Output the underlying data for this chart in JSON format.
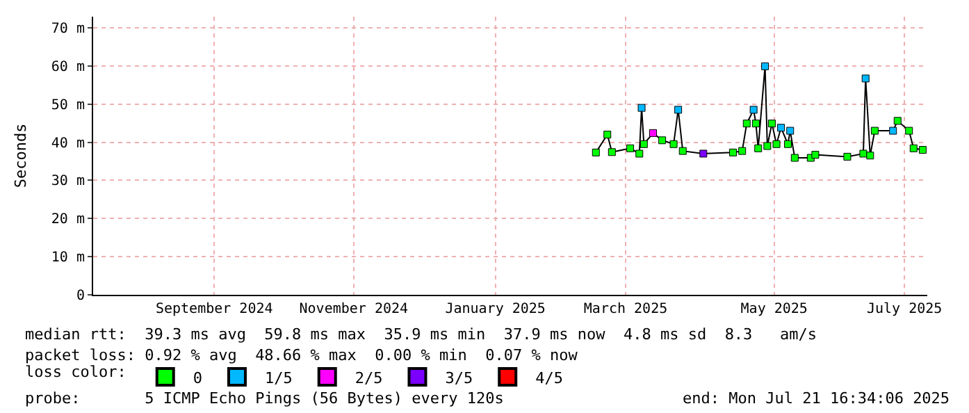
{
  "chart_data": {
    "type": "line",
    "ylabel": "Seconds",
    "x": [
      "2025-02-26",
      "2025-03-03",
      "2025-03-05",
      "2025-03-13",
      "2025-03-17",
      "2025-03-18",
      "2025-03-19",
      "2025-03-23",
      "2025-03-27",
      "2025-04-01",
      "2025-04-03",
      "2025-04-05",
      "2025-04-14",
      "2025-04-27",
      "2025-05-01",
      "2025-05-03",
      "2025-05-06",
      "2025-05-07",
      "2025-05-08",
      "2025-05-11",
      "2025-05-12",
      "2025-05-14",
      "2025-05-16",
      "2025-05-18",
      "2025-05-21",
      "2025-05-22",
      "2025-05-24",
      "2025-05-31",
      "2025-06-02",
      "2025-06-16",
      "2025-06-23",
      "2025-06-24",
      "2025-06-26",
      "2025-06-28",
      "2025-07-06",
      "2025-07-08",
      "2025-07-13",
      "2025-07-15",
      "2025-07-19"
    ],
    "series": [
      {
        "color": "#000000",
        "values": [
          37.3,
          42,
          37.4,
          38.4,
          37,
          49,
          39.5,
          42.4,
          40.5,
          39.5,
          48.5,
          37.7,
          37,
          37.3,
          37.7,
          44.9,
          48.5,
          44.9,
          38.4,
          59.9,
          39,
          44.9,
          39.5,
          43.8,
          39.5,
          43,
          35.9,
          35.9,
          36.7,
          36.2,
          37,
          56.7,
          36.5,
          43,
          43,
          45.6,
          43,
          38.4,
          38
        ]
      },
      {
        "name": "0",
        "color": "#00ff00",
        "type": "scatter",
        "marker": "square",
        "values": [
          37.3,
          42,
          37.4,
          38.4,
          37,
          null,
          39.5,
          null,
          40.5,
          39.5,
          null,
          37.7,
          null,
          37.3,
          37.7,
          44.9,
          null,
          44.9,
          38.4,
          null,
          39,
          44.9,
          39.5,
          null,
          39.5,
          null,
          35.9,
          35.9,
          36.7,
          36.2,
          37,
          null,
          36.5,
          43,
          null,
          45.6,
          43,
          38.4,
          38
        ]
      },
      {
        "name": "1/5",
        "color": "#00b8ff",
        "type": "scatter",
        "marker": "square",
        "values": [
          null,
          null,
          null,
          null,
          null,
          49,
          null,
          null,
          null,
          null,
          48.5,
          null,
          null,
          null,
          null,
          null,
          48.5,
          null,
          null,
          59.9,
          null,
          null,
          null,
          43.8,
          null,
          43,
          null,
          null,
          null,
          null,
          null,
          56.7,
          null,
          null,
          43,
          null,
          null,
          null,
          null
        ]
      },
      {
        "name": "2/5",
        "color": "#ff00ff",
        "type": "scatter",
        "marker": "square",
        "values": [
          null,
          null,
          null,
          null,
          null,
          null,
          null,
          42.4,
          null,
          null,
          null,
          null,
          null,
          null,
          null,
          null,
          null,
          null,
          null,
          null,
          null,
          null,
          null,
          null,
          null,
          null,
          null,
          null,
          null,
          null,
          null,
          null,
          null,
          null,
          null,
          null,
          null,
          null,
          null
        ]
      },
      {
        "name": "3/5",
        "color": "#7b00ff",
        "type": "scatter",
        "marker": "square",
        "values": [
          null,
          null,
          null,
          null,
          null,
          null,
          null,
          null,
          null,
          null,
          null,
          null,
          37,
          null,
          null,
          null,
          null,
          null,
          null,
          null,
          null,
          null,
          null,
          null,
          null,
          null,
          null,
          null,
          null,
          null,
          null,
          null,
          null,
          null,
          null,
          null,
          null,
          null,
          null
        ]
      },
      {
        "name": "4/5",
        "color": "#ff0000",
        "type": "scatter",
        "marker": "square",
        "values": [
          null,
          null,
          null,
          null,
          null,
          null,
          null,
          null,
          null,
          null,
          null,
          null,
          null,
          null,
          null,
          null,
          null,
          null,
          null,
          null,
          null,
          null,
          null,
          null,
          null,
          null,
          null,
          null,
          null,
          null,
          null,
          null,
          null,
          null,
          null,
          null,
          null,
          null,
          null
        ]
      }
    ],
    "legend_title": "loss color:",
    "legend": "bottom left",
    "xlim": [
      "2024-07-21",
      "2025-07-21"
    ],
    "xticks": [
      {
        "value": "2024-09-12",
        "label": "September 2024"
      },
      {
        "value": "2024-11-12",
        "label": "November 2024"
      },
      {
        "value": "2025-01-13",
        "label": "January 2025"
      },
      {
        "value": "2025-03-11",
        "label": "March 2025"
      },
      {
        "value": "2025-05-15",
        "label": "May 2025"
      },
      {
        "value": "2025-07-11",
        "label": "July 2025"
      }
    ],
    "ylim": [
      0,
      72.9
    ],
    "yticks": [
      0,
      {
        "value": 10,
        "label": "10 m"
      },
      {
        "value": 20,
        "label": "20 m"
      },
      {
        "value": 30,
        "label": "30 m"
      },
      {
        "value": 40,
        "label": "40 m"
      },
      {
        "value": 50,
        "label": "50 m"
      },
      {
        "value": 60,
        "label": "60 m"
      },
      {
        "value": 70,
        "label": "70 m"
      }
    ],
    "grid": true,
    "annotations": [
      "median rtt:  39.3 ms avg  59.8 ms max  35.9 ms min  37.9 ms now  4.8 ms sd  8.3   am/s",
      "packet loss: 0.92 % avg  48.66 % max  0.00 % min  0.07 % now",
      "probe:       5 ICMP Echo Pings (56 Bytes) every 120s",
      "end: Mon Jul 21 16:34:06 2025"
    ]
  }
}
